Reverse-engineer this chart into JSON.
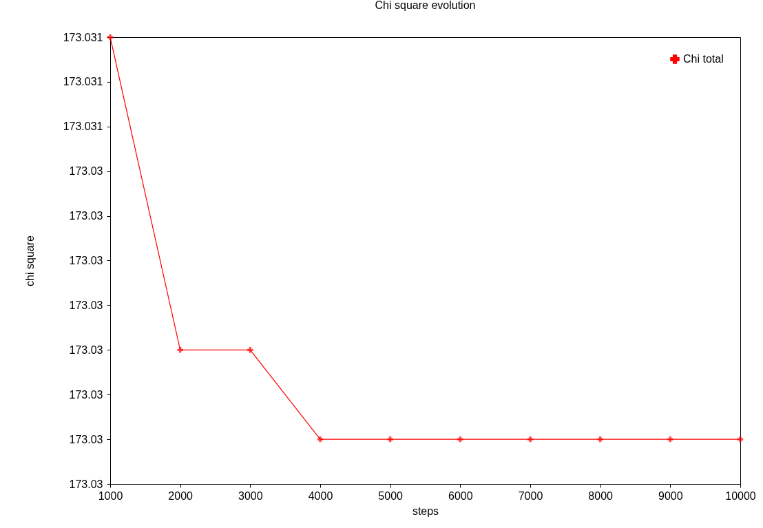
{
  "chart_data": {
    "type": "line",
    "title": "Chi square evolution",
    "xlabel": "steps",
    "ylabel": "chi square",
    "x": [
      1000,
      2000,
      3000,
      4000,
      5000,
      6000,
      7000,
      8000,
      9000,
      10000
    ],
    "series": [
      {
        "name": "Chi total",
        "color": "#ff0000",
        "values": [
          173.0307,
          173.03,
          173.03,
          173.0298,
          173.0298,
          173.0298,
          173.0298,
          173.0298,
          173.0298,
          173.0298
        ]
      }
    ],
    "xlim": [
      1000,
      10000
    ],
    "xticks": [
      1000,
      2000,
      3000,
      4000,
      5000,
      6000,
      7000,
      8000,
      9000,
      10000
    ],
    "ylim": [
      173.0297,
      173.0307
    ],
    "yticks": [
      {
        "value": 173.0297,
        "label": "173.03"
      },
      {
        "value": 173.0298,
        "label": "173.03"
      },
      {
        "value": 173.0299,
        "label": "173.03"
      },
      {
        "value": 173.03,
        "label": "173.03"
      },
      {
        "value": 173.0301,
        "label": "173.03"
      },
      {
        "value": 173.0302,
        "label": "173.03"
      },
      {
        "value": 173.0303,
        "label": "173.03"
      },
      {
        "value": 173.0304,
        "label": "173.03"
      },
      {
        "value": 173.0305,
        "label": "173.031"
      },
      {
        "value": 173.0306,
        "label": "173.031"
      },
      {
        "value": 173.0307,
        "label": "173.031"
      }
    ],
    "grid": false,
    "legend": "top right",
    "marker": "cross",
    "line_style": "solid"
  }
}
